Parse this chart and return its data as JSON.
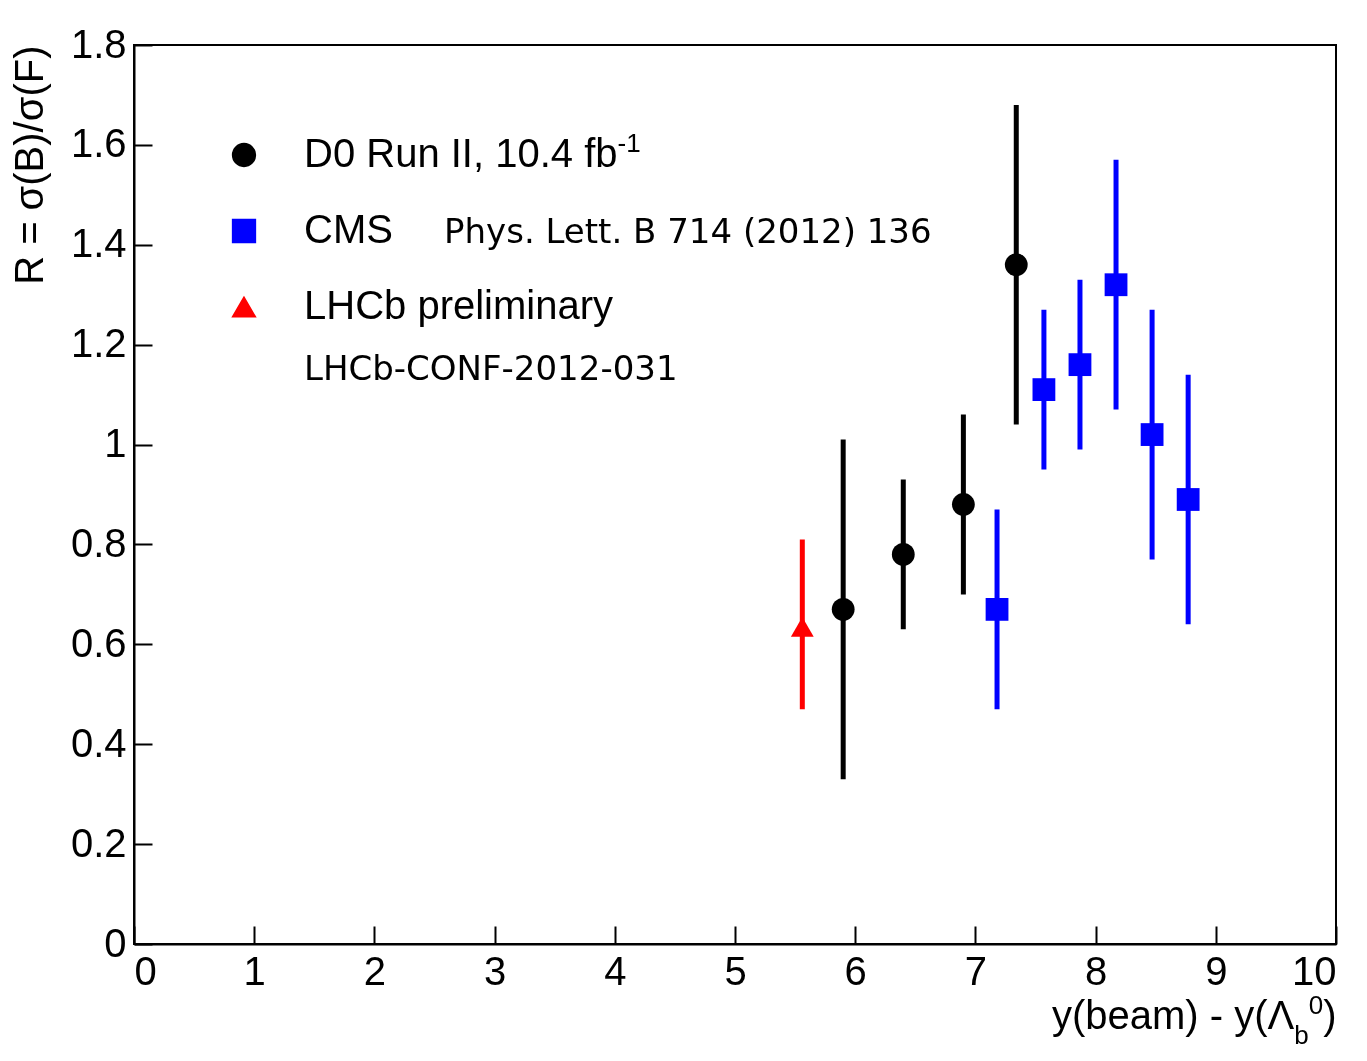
{
  "chart_data": {
    "type": "scatter",
    "xlabel": "y(beam) -  y(Λ$_{b}$$^{0}$)",
    "ylabel": "R = σ(B)/σ(F)",
    "xlim": [
      0,
      10
    ],
    "xticks": [
      0,
      1,
      2,
      3,
      4,
      5,
      6,
      7,
      8,
      9,
      10
    ],
    "ylim": [
      0,
      1.8
    ],
    "yticks": [
      0,
      0.2,
      0.4,
      0.6,
      0.8,
      1,
      1.2,
      1.4,
      1.6,
      1.8
    ],
    "grid": false,
    "legend": "top left",
    "annotations": [
      "Phys. Lett. B 714 (2012) 136",
      "LHCb-CONF-2012-031"
    ],
    "series": [
      {
        "name": "D0 Run II, 10.4 fb$^{-1}$",
        "color": "#000000",
        "marker": "circle",
        "x": [
          5.9,
          6.4,
          6.9,
          7.34
        ],
        "values": [
          0.67,
          0.78,
          0.88,
          1.36
        ],
        "errors": [
          [
            0.33,
            1.01
          ],
          [
            0.63,
            0.93
          ],
          [
            0.7,
            1.06
          ],
          [
            1.04,
            1.68
          ]
        ]
      },
      {
        "name": "CMS",
        "color": "#0000ff",
        "marker": "square",
        "x": [
          7.18,
          7.57,
          7.87,
          8.17,
          8.47,
          8.77
        ],
        "values": [
          0.67,
          1.11,
          1.16,
          1.32,
          1.02,
          0.89
        ],
        "errors": [
          [
            0.47,
            0.87
          ],
          [
            0.95,
            1.27
          ],
          [
            0.99,
            1.33
          ],
          [
            1.07,
            1.57
          ],
          [
            0.77,
            1.27
          ],
          [
            0.64,
            1.14
          ]
        ]
      },
      {
        "name": "LHCb preliminary",
        "color": "#ff0000",
        "marker": "triangle",
        "x": [
          5.56
        ],
        "values": [
          0.635
        ],
        "errors": [
          [
            0.47,
            0.81
          ]
        ]
      }
    ]
  }
}
